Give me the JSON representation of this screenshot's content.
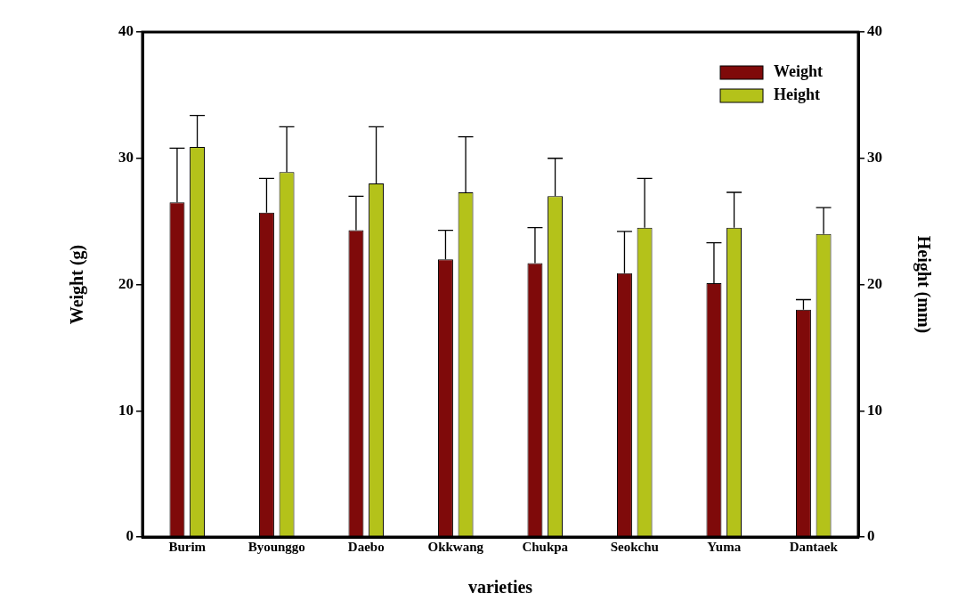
{
  "chart_data": {
    "type": "bar",
    "categories": [
      "Burim",
      "Byounggo",
      "Daebo",
      "Okkwang",
      "Chukpa",
      "Seokchu",
      "Yuma",
      "Dantaek"
    ],
    "x_label": "varieties",
    "y_label": "Weight (g)",
    "y2_label": "Height (mm)",
    "series": [
      {
        "name": "Weight",
        "color": "#7f0a0a",
        "values": [
          26.5,
          25.7,
          24.3,
          22.0,
          21.7,
          20.9,
          20.1,
          18.0
        ],
        "errors": [
          4.3,
          2.7,
          2.7,
          2.3,
          2.8,
          3.3,
          3.2,
          0.8
        ]
      },
      {
        "name": "Height",
        "color": "#b4c21a",
        "axis": "y2",
        "values": [
          30.9,
          28.9,
          28.0,
          27.3,
          27.0,
          24.5,
          24.5,
          24.0
        ],
        "errors": [
          2.5,
          3.6,
          4.5,
          4.4,
          3.0,
          3.9,
          2.8,
          2.1
        ]
      }
    ],
    "ylim": [
      0,
      40
    ],
    "yticks": [
      0,
      10,
      20,
      30,
      40
    ],
    "y2lim": [
      0,
      40
    ],
    "y2ticks": [
      0,
      10,
      20,
      30,
      40
    ],
    "grid": false,
    "legend": "upper right"
  }
}
